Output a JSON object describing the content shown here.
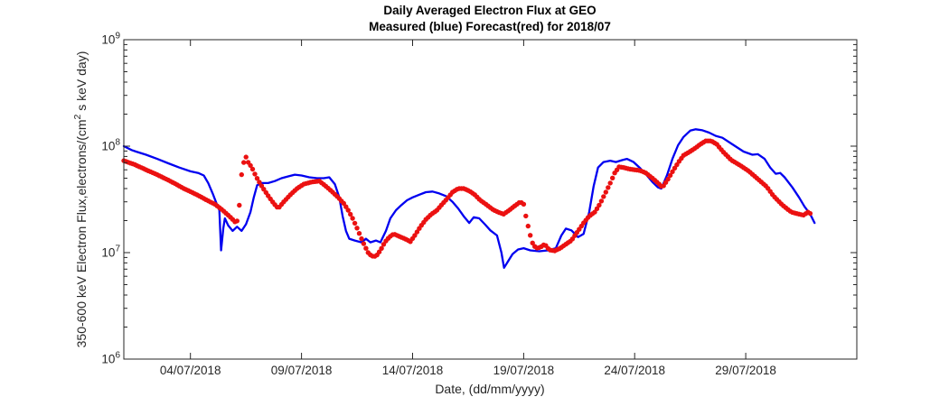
{
  "figure": {
    "title_line1": "Daily Averaged Electron Flux at GEO",
    "title_line2": "Measured (blue) Forecast(red) for 2018/07",
    "xlabel": "Date, (dd/mm/yyyy)",
    "ylabel_prefix": "350-600 keV Electron Flux,electrons/(cm",
    "ylabel_sup": "2",
    "ylabel_suffix": " s keV day)"
  },
  "chart_data": {
    "type": "line",
    "title": "Daily Averaged Electron Flux at GEO — Measured (blue) Forecast(red) for 2018/07",
    "xlabel": "Date, (dd/mm/yyyy)",
    "ylabel": "350-600 keV Electron Flux,electrons/(cm^2 s keV day)",
    "x_axis": {
      "unit": "day of July 2018 (1 = 01/07/2018 00:00)",
      "range_days": [
        1,
        34
      ],
      "tick_days": [
        4,
        9,
        14,
        19,
        24,
        29
      ],
      "tick_labels": [
        "04/07/2018",
        "09/07/2018",
        "14/07/2018",
        "19/07/2018",
        "24/07/2018",
        "29/07/2018"
      ]
    },
    "y_axis": {
      "scale": "log",
      "range": [
        1000000.0,
        1000000000.0
      ],
      "tick_exponents": [
        6,
        7,
        8,
        9
      ],
      "minor_ticks": true
    },
    "legend": "encoded in title: Measured = blue line, Forecast = red dots",
    "grid": false,
    "series": [
      {
        "name": "Measured",
        "color": "#0000F0",
        "style": "line",
        "points": [
          [
            1.0,
            100000000.0
          ],
          [
            1.35,
            92000000.0
          ],
          [
            1.55,
            89000000.0
          ],
          [
            2.0,
            83000000.0
          ],
          [
            2.5,
            76000000.0
          ],
          [
            3.0,
            69000000.0
          ],
          [
            3.5,
            63000000.0
          ],
          [
            4.0,
            58000000.0
          ],
          [
            4.35,
            56000000.0
          ],
          [
            4.6,
            53000000.0
          ],
          [
            4.8,
            45000000.0
          ],
          [
            5.0,
            36000000.0
          ],
          [
            5.2,
            28000000.0
          ],
          [
            5.3,
            25000000.0
          ],
          [
            5.38,
            10500000.0
          ],
          [
            5.48,
            17000000.0
          ],
          [
            5.55,
            21000000.0
          ],
          [
            5.7,
            18000000.0
          ],
          [
            5.9,
            16000000.0
          ],
          [
            6.1,
            17500000.0
          ],
          [
            6.3,
            16000000.0
          ],
          [
            6.5,
            18500000.0
          ],
          [
            6.7,
            24000000.0
          ],
          [
            6.85,
            33000000.0
          ],
          [
            7.0,
            43000000.0
          ],
          [
            7.2,
            45000000.0
          ],
          [
            7.5,
            45000000.0
          ],
          [
            7.8,
            47000000.0
          ],
          [
            8.1,
            50000000.0
          ],
          [
            8.4,
            52000000.0
          ],
          [
            8.7,
            54000000.0
          ],
          [
            9.0,
            53000000.0
          ],
          [
            9.35,
            51000000.0
          ],
          [
            9.7,
            50000000.0
          ],
          [
            10.0,
            50000000.0
          ],
          [
            10.25,
            51000000.0
          ],
          [
            10.5,
            44000000.0
          ],
          [
            10.7,
            33000000.0
          ],
          [
            10.85,
            22000000.0
          ],
          [
            11.0,
            16000000.0
          ],
          [
            11.15,
            13500000.0
          ],
          [
            11.4,
            13000000.0
          ],
          [
            11.7,
            12500000.0
          ],
          [
            11.9,
            13500000.0
          ],
          [
            12.1,
            12500000.0
          ],
          [
            12.35,
            13000000.0
          ],
          [
            12.55,
            12500000.0
          ],
          [
            12.8,
            16000000.0
          ],
          [
            13.0,
            21000000.0
          ],
          [
            13.25,
            25000000.0
          ],
          [
            13.5,
            28000000.0
          ],
          [
            13.75,
            31000000.0
          ],
          [
            14.0,
            33000000.0
          ],
          [
            14.3,
            35000000.0
          ],
          [
            14.6,
            37000000.0
          ],
          [
            14.9,
            37500000.0
          ],
          [
            15.2,
            36000000.0
          ],
          [
            15.5,
            34000000.0
          ],
          [
            15.8,
            30000000.0
          ],
          [
            16.05,
            26000000.0
          ],
          [
            16.3,
            22000000.0
          ],
          [
            16.55,
            19000000.0
          ],
          [
            16.75,
            21500000.0
          ],
          [
            17.0,
            21000000.0
          ],
          [
            17.25,
            18500000.0
          ],
          [
            17.5,
            16200000.0
          ],
          [
            17.8,
            14500000.0
          ],
          [
            18.0,
            10000000.0
          ],
          [
            18.12,
            7200000.0
          ],
          [
            18.3,
            8300000.0
          ],
          [
            18.5,
            9700000.0
          ],
          [
            18.75,
            10700000.0
          ],
          [
            19.0,
            11000000.0
          ],
          [
            19.3,
            10500000.0
          ],
          [
            19.7,
            10300000.0
          ],
          [
            20.1,
            10500000.0
          ],
          [
            20.45,
            11000000.0
          ],
          [
            20.7,
            14500000.0
          ],
          [
            20.9,
            16800000.0
          ],
          [
            21.15,
            16200000.0
          ],
          [
            21.45,
            14000000.0
          ],
          [
            21.7,
            15000000.0
          ],
          [
            21.95,
            24000000.0
          ],
          [
            22.15,
            42000000.0
          ],
          [
            22.35,
            63000000.0
          ],
          [
            22.6,
            71000000.0
          ],
          [
            22.9,
            73000000.0
          ],
          [
            23.15,
            71000000.0
          ],
          [
            23.45,
            74000000.0
          ],
          [
            23.65,
            76000000.0
          ],
          [
            23.95,
            71000000.0
          ],
          [
            24.25,
            62000000.0
          ],
          [
            24.55,
            53000000.0
          ],
          [
            24.8,
            46000000.0
          ],
          [
            25.05,
            41000000.0
          ],
          [
            25.2,
            40000000.0
          ],
          [
            25.45,
            53000000.0
          ],
          [
            25.7,
            76000000.0
          ],
          [
            25.95,
            102000000.0
          ],
          [
            26.2,
            122000000.0
          ],
          [
            26.5,
            140000000.0
          ],
          [
            26.75,
            144000000.0
          ],
          [
            27.05,
            141000000.0
          ],
          [
            27.35,
            134000000.0
          ],
          [
            27.65,
            125000000.0
          ],
          [
            27.95,
            120000000.0
          ],
          [
            28.4,
            104000000.0
          ],
          [
            28.9,
            89000000.0
          ],
          [
            29.3,
            83000000.0
          ],
          [
            29.55,
            84000000.0
          ],
          [
            29.85,
            76000000.0
          ],
          [
            30.1,
            63000000.0
          ],
          [
            30.35,
            55000000.0
          ],
          [
            30.55,
            56000000.0
          ],
          [
            30.75,
            51000000.0
          ],
          [
            31.1,
            41000000.0
          ],
          [
            31.4,
            33000000.0
          ],
          [
            31.65,
            27000000.0
          ],
          [
            31.9,
            23000000.0
          ],
          [
            32.1,
            19000000.0
          ]
        ]
      },
      {
        "name": "Forecast",
        "color": "#EB1111",
        "style": "dots",
        "points": [
          [
            1.0,
            73000000.0
          ],
          [
            1.5,
            67000000.0
          ],
          [
            2.0,
            60000000.0
          ],
          [
            2.5,
            54000000.0
          ],
          [
            3.0,
            48000000.0
          ],
          [
            3.35,
            44000000.0
          ],
          [
            3.7,
            40000000.0
          ],
          [
            4.05,
            37000000.0
          ],
          [
            4.4,
            34000000.0
          ],
          [
            4.75,
            31000000.0
          ],
          [
            5.1,
            28500000.0
          ],
          [
            5.4,
            25500000.0
          ],
          [
            5.65,
            23000000.0
          ],
          [
            5.85,
            21000000.0
          ],
          [
            6.0,
            19500000.0
          ],
          [
            6.15,
            20000000.0
          ],
          [
            6.3,
            54000000.0
          ],
          [
            6.42,
            74000000.0
          ],
          [
            6.5,
            79000000.0
          ],
          [
            6.62,
            69000000.0
          ],
          [
            6.75,
            64000000.0
          ],
          [
            6.95,
            52000000.0
          ],
          [
            7.15,
            44000000.0
          ],
          [
            7.35,
            38000000.0
          ],
          [
            7.55,
            33000000.0
          ],
          [
            7.75,
            29000000.0
          ],
          [
            7.95,
            26000000.0
          ],
          [
            8.2,
            30000000.0
          ],
          [
            8.5,
            35000000.0
          ],
          [
            8.8,
            40000000.0
          ],
          [
            9.1,
            44000000.0
          ],
          [
            9.45,
            46000000.0
          ],
          [
            9.8,
            47000000.0
          ],
          [
            10.1,
            42000000.0
          ],
          [
            10.4,
            37000000.0
          ],
          [
            10.65,
            33000000.0
          ],
          [
            10.9,
            29000000.0
          ],
          [
            11.1,
            25000000.0
          ],
          [
            11.3,
            21000000.0
          ],
          [
            11.5,
            17000000.0
          ],
          [
            11.7,
            13500000.0
          ],
          [
            11.85,
            11500000.0
          ],
          [
            12.0,
            10000000.0
          ],
          [
            12.15,
            9300000.0
          ],
          [
            12.35,
            9200000.0
          ],
          [
            12.55,
            10500000.0
          ],
          [
            12.75,
            12500000.0
          ],
          [
            12.95,
            14000000.0
          ],
          [
            13.15,
            15000000.0
          ],
          [
            13.4,
            14200000.0
          ],
          [
            13.65,
            13500000.0
          ],
          [
            13.9,
            12700000.0
          ],
          [
            14.1,
            14500000.0
          ],
          [
            14.35,
            17500000.0
          ],
          [
            14.6,
            20500000.0
          ],
          [
            14.85,
            23000000.0
          ],
          [
            15.1,
            25000000.0
          ],
          [
            15.3,
            28000000.0
          ],
          [
            15.55,
            32000000.0
          ],
          [
            15.8,
            37000000.0
          ],
          [
            16.05,
            40000000.0
          ],
          [
            16.3,
            40000000.0
          ],
          [
            16.55,
            38000000.0
          ],
          [
            16.8,
            35000000.0
          ],
          [
            17.05,
            31000000.0
          ],
          [
            17.3,
            28500000.0
          ],
          [
            17.6,
            25500000.0
          ],
          [
            17.85,
            24000000.0
          ],
          [
            18.1,
            23000000.0
          ],
          [
            18.35,
            25000000.0
          ],
          [
            18.6,
            27500000.0
          ],
          [
            18.85,
            30000000.0
          ],
          [
            19.0,
            28500000.0
          ],
          [
            19.12,
            21000000.0
          ],
          [
            19.25,
            16000000.0
          ],
          [
            19.38,
            12500000.0
          ],
          [
            19.55,
            11000000.0
          ],
          [
            19.75,
            11200000.0
          ],
          [
            19.95,
            12000000.0
          ],
          [
            20.15,
            10600000.0
          ],
          [
            20.4,
            10400000.0
          ],
          [
            20.65,
            11000000.0
          ],
          [
            20.9,
            12000000.0
          ],
          [
            21.15,
            13000000.0
          ],
          [
            21.45,
            16000000.0
          ],
          [
            21.7,
            19000000.0
          ],
          [
            21.95,
            22000000.0
          ],
          [
            22.2,
            24000000.0
          ],
          [
            22.45,
            29000000.0
          ],
          [
            22.7,
            37000000.0
          ],
          [
            22.9,
            45000000.0
          ],
          [
            23.1,
            56000000.0
          ],
          [
            23.3,
            64000000.0
          ],
          [
            23.5,
            63000000.0
          ],
          [
            23.75,
            61000000.0
          ],
          [
            24.0,
            60000000.0
          ],
          [
            24.25,
            59000000.0
          ],
          [
            24.5,
            56000000.0
          ],
          [
            24.8,
            50000000.0
          ],
          [
            25.05,
            45000000.0
          ],
          [
            25.25,
            41000000.0
          ],
          [
            25.5,
            49000000.0
          ],
          [
            25.75,
            60000000.0
          ],
          [
            26.0,
            72000000.0
          ],
          [
            26.2,
            82000000.0
          ],
          [
            26.45,
            88000000.0
          ],
          [
            26.7,
            95000000.0
          ],
          [
            26.95,
            104000000.0
          ],
          [
            27.2,
            112000000.0
          ],
          [
            27.45,
            112000000.0
          ],
          [
            27.7,
            104000000.0
          ],
          [
            27.95,
            90000000.0
          ],
          [
            28.35,
            74000000.0
          ],
          [
            28.75,
            66000000.0
          ],
          [
            29.15,
            58000000.0
          ],
          [
            29.55,
            49000000.0
          ],
          [
            29.95,
            41500000.0
          ],
          [
            30.25,
            34000000.0
          ],
          [
            30.65,
            28000000.0
          ],
          [
            31.05,
            24000000.0
          ],
          [
            31.4,
            23000000.0
          ],
          [
            31.6,
            22500000.0
          ],
          [
            31.8,
            24000000.0
          ],
          [
            31.95,
            23000000.0
          ]
        ]
      }
    ]
  },
  "colors": {
    "measured_blue": "#0000F0",
    "forecast_red": "#EB1111",
    "axis": "#262626",
    "background": "#ffffff"
  }
}
